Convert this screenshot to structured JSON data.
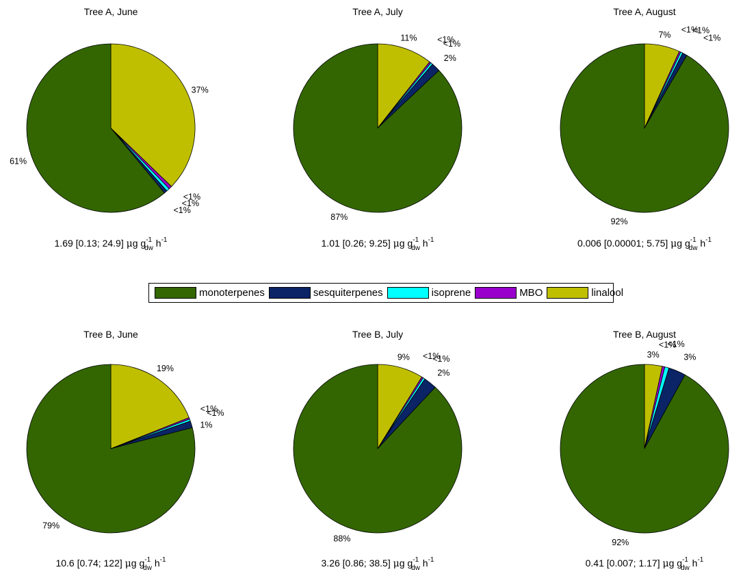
{
  "colors": {
    "monoterpenes": "#336600",
    "sesquiterpenes": "#0a2466",
    "isoprene": "#00ffff",
    "MBO": "#9900cc",
    "linalool": "#bfbf00"
  },
  "legend": [
    "monoterpenes",
    "sesquiterpenes",
    "isoprene",
    "MBO",
    "linalool"
  ],
  "chart_data": [
    {
      "type": "pie",
      "title": "Tree A, June",
      "categories": [
        "linalool",
        "MBO",
        "isoprene",
        "sesquiterpenes",
        "monoterpenes"
      ],
      "values": [
        37.2,
        0.6,
        0.6,
        0.6,
        61.0
      ],
      "labels": [
        "37%",
        "<1%",
        "<1%",
        "<1%",
        "61%"
      ],
      "footer": {
        "main": "1.69 [0.13; 24.9] ",
        "mu": "μ",
        "g": "g g",
        "sub1": "dw",
        "sup1": "-1",
        "h": " h",
        "sup2": "-1"
      }
    },
    {
      "type": "pie",
      "title": "Tree A, July",
      "categories": [
        "linalool",
        "MBO",
        "isoprene",
        "sesquiterpenes",
        "monoterpenes"
      ],
      "values": [
        10.6,
        0.3,
        0.4,
        1.7,
        87.0
      ],
      "labels": [
        "11%",
        "<1%",
        "<1%",
        "2%",
        "87%"
      ],
      "footer": {
        "main": "1.01 [0.26; 9.25] ",
        "mu": "μ",
        "g": "g g",
        "sub1": "dw",
        "sup1": "-1",
        "h": " h",
        "sup2": "-1"
      }
    },
    {
      "type": "pie",
      "title": "Tree A, August",
      "categories": [
        "linalool",
        "MBO",
        "isoprene",
        "sesquiterpenes",
        "monoterpenes"
      ],
      "values": [
        6.8,
        0.3,
        0.4,
        0.9,
        91.6
      ],
      "labels": [
        "7%",
        "<1%",
        "<1%",
        "<1%",
        "92%"
      ],
      "footer": {
        "main": "0.006 [0.00001; 5.75] ",
        "mu": "μ",
        "g": "g g",
        "sub1": "dw",
        "sup1": "-1",
        "h": " h",
        "sup2": "-1"
      }
    },
    {
      "type": "pie",
      "title": "Tree B, June",
      "categories": [
        "linalool",
        "MBO",
        "isoprene",
        "sesquiterpenes",
        "monoterpenes"
      ],
      "values": [
        19.0,
        0.3,
        0.4,
        1.3,
        79.0
      ],
      "labels": [
        "19%",
        "<1%",
        "<1%",
        "1%",
        "79%"
      ],
      "footer": {
        "main": "10.6 [0.74; 122] ",
        "mu": "μ",
        "g": "g g",
        "sub1": "dw",
        "sup1": "-1",
        "h": " h",
        "sup2": "-1"
      }
    },
    {
      "type": "pie",
      "title": "Tree B, July",
      "categories": [
        "linalool",
        "MBO",
        "isoprene",
        "sesquiterpenes",
        "monoterpenes"
      ],
      "values": [
        8.8,
        0.3,
        0.4,
        2.5,
        88.0
      ],
      "labels": [
        "9%",
        "<1%",
        "<1%",
        "2%",
        "88%"
      ],
      "footer": {
        "main": "3.26 [0.86; 38.5] ",
        "mu": "μ",
        "g": "g g",
        "sub1": "dw",
        "sup1": "-1",
        "h": " h",
        "sup2": "-1"
      }
    },
    {
      "type": "pie",
      "title": "Tree B, August",
      "categories": [
        "linalool",
        "MBO",
        "isoprene",
        "sesquiterpenes",
        "monoterpenes"
      ],
      "values": [
        3.4,
        0.5,
        0.8,
        3.3,
        92.0
      ],
      "labels": [
        "3%",
        "<1%",
        "<1%",
        "3%",
        "92%"
      ],
      "footer": {
        "main": "0.41 [0.007; 1.17] ",
        "mu": "μ",
        "g": "g g",
        "sub1": "dw",
        "sup1": "-1",
        "h": " h",
        "sup2": "-1"
      }
    }
  ]
}
